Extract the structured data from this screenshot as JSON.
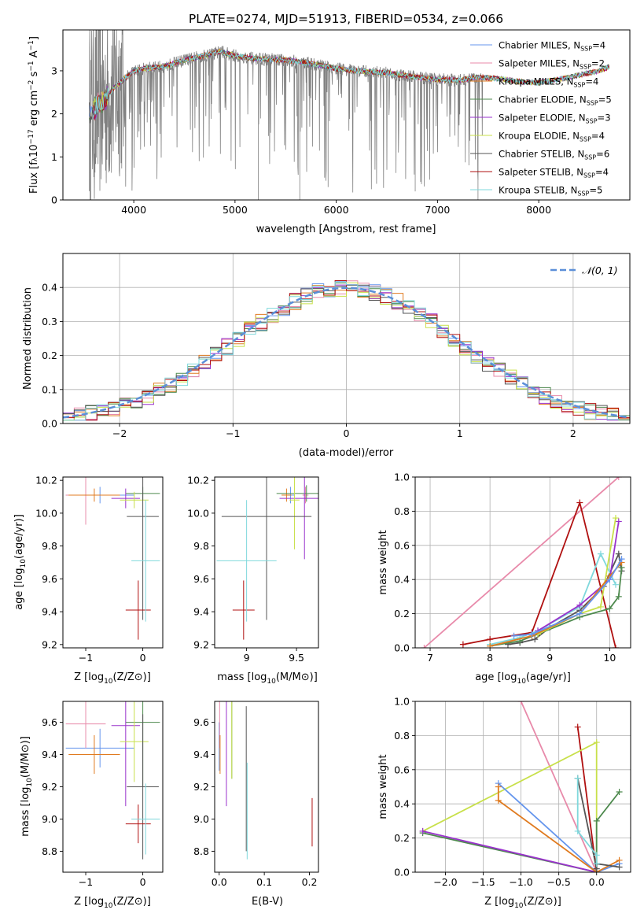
{
  "figure": {
    "title": "PLATE=0274, MJD=51913, FIBERID=0534, z=0.066"
  },
  "colors": {
    "chabrier_miles": "#6495ed",
    "salpeter_miles": "#e88aaa",
    "kroupa_miles": "#e07b20",
    "chabrier_elodie": "#4e8a4e",
    "salpeter_elodie": "#9932cc",
    "kroupa_elodie": "#c8e04a",
    "chabrier_stelib": "#555555",
    "salpeter_stelib": "#b01010",
    "kroupa_stelib": "#7fd8dc"
  },
  "chart_data": [
    {
      "id": "spectrum",
      "type": "line",
      "xlabel": "wavelength [Angstrom, rest frame]",
      "ylabel_parts": [
        "Flux [f",
        "λ",
        "10",
        "−17",
        " erg cm",
        "−2",
        " s",
        "−1",
        " A",
        "−1",
        "]"
      ],
      "xlim": [
        3300,
        8900
      ],
      "ylim": [
        0,
        3.95
      ],
      "xticks": [
        4000,
        5000,
        6000,
        7000,
        8000
      ],
      "yticks": [
        0,
        1,
        2,
        3
      ],
      "series": [
        {
          "name": "Chabrier MILES",
          "nssp": "4",
          "color": "#6495ed"
        },
        {
          "name": "Salpeter MILES",
          "nssp": "2",
          "color": "#e88aaa"
        },
        {
          "name": "Kroupa MILES",
          "nssp": "4",
          "color": "#e07b20"
        },
        {
          "name": "Chabrier ELODIE",
          "nssp": "5",
          "color": "#4e8a4e"
        },
        {
          "name": "Salpeter ELODIE",
          "nssp": "3",
          "color": "#9932cc"
        },
        {
          "name": "Kroupa ELODIE",
          "nssp": "4",
          "color": "#c8e04a"
        },
        {
          "name": "Chabrier STELIB",
          "nssp": "6",
          "color": "#555555"
        },
        {
          "name": "Salpeter STELIB",
          "nssp": "4",
          "color": "#b01010"
        },
        {
          "name": "Kroupa STELIB",
          "nssp": "5",
          "color": "#7fd8dc"
        }
      ],
      "data_color": "#808080",
      "continuum": [
        [
          3550,
          2.0
        ],
        [
          3700,
          2.3
        ],
        [
          3800,
          2.6
        ],
        [
          3900,
          2.8
        ],
        [
          4000,
          3.0
        ],
        [
          4100,
          3.05
        ],
        [
          4300,
          3.1
        ],
        [
          4500,
          3.25
        ],
        [
          4700,
          3.35
        ],
        [
          4850,
          3.45
        ],
        [
          5000,
          3.35
        ],
        [
          5200,
          3.28
        ],
        [
          5500,
          3.25
        ],
        [
          5800,
          3.15
        ],
        [
          6000,
          3.05
        ],
        [
          6200,
          3.0
        ],
        [
          6500,
          2.95
        ],
        [
          6800,
          2.85
        ],
        [
          7000,
          2.8
        ],
        [
          7200,
          2.78
        ],
        [
          7400,
          2.85
        ],
        [
          7600,
          2.82
        ],
        [
          7800,
          2.75
        ],
        [
          8000,
          2.72
        ],
        [
          8200,
          2.8
        ],
        [
          8400,
          2.9
        ],
        [
          8600,
          3.0
        ],
        [
          8700,
          3.1
        ]
      ]
    },
    {
      "id": "residuals",
      "type": "histogram",
      "xlabel": "(data-model)/error",
      "ylabel": "Normed distribution",
      "xlim": [
        -2.5,
        2.5
      ],
      "ylim": [
        0,
        0.5
      ],
      "xticks": [
        -2,
        -1,
        0,
        1,
        2
      ],
      "yticks": [
        0.0,
        0.1,
        0.2,
        0.3,
        0.4
      ],
      "legend": "N(0,1)",
      "legend_placement": "upper right",
      "gaussian_color": "#5b8fd8",
      "bin_width": 0.1
    },
    {
      "id": "age_vs_Z",
      "type": "scatter",
      "xlabel": "Z [log10(Z/Z⊙)]",
      "ylabel": "age [log10(age/yr)]",
      "xlim": [
        -1.4,
        0.35
      ],
      "ylim": [
        9.18,
        10.22
      ],
      "xticks": [
        -1,
        0
      ],
      "yticks": [
        9.2,
        9.4,
        9.6,
        9.8,
        10.0,
        10.2
      ],
      "points": [
        {
          "series": "Chabrier MILES",
          "x": -0.75,
          "y": 10.11,
          "xerr": 0.6,
          "yerr": 0.05
        },
        {
          "series": "Salpeter MILES",
          "x": -1.0,
          "y": 10.11,
          "xerr": 0.35,
          "yerr": 0.18
        },
        {
          "series": "Kroupa MILES",
          "x": -0.85,
          "y": 10.11,
          "xerr": 0.45,
          "yerr": 0.04
        },
        {
          "series": "Chabrier ELODIE",
          "x": 0.0,
          "y": 10.12,
          "xerr": 0.3,
          "yerr": 0.04
        },
        {
          "series": "Salpeter ELODIE",
          "x": -0.3,
          "y": 10.09,
          "xerr": 0.25,
          "yerr": 0.06
        },
        {
          "series": "Kroupa ELODIE",
          "x": -0.15,
          "y": 10.08,
          "xerr": 0.25,
          "yerr": 0.05
        },
        {
          "series": "Chabrier STELIB",
          "x": 0.0,
          "y": 9.98,
          "xerr": 0.28,
          "yerr": 0.63
        },
        {
          "series": "Salpeter STELIB",
          "x": -0.08,
          "y": 9.41,
          "xerr": 0.22,
          "yerr": 0.18
        },
        {
          "series": "Kroupa STELIB",
          "x": 0.05,
          "y": 9.71,
          "xerr": 0.25,
          "yerr": 0.37
        }
      ]
    },
    {
      "id": "age_vs_mass",
      "type": "scatter",
      "xlabel": "mass [log10(M/M⊙)]",
      "xlim": [
        8.68,
        9.72
      ],
      "ylim": [
        9.18,
        10.22
      ],
      "xticks": [
        9.0,
        9.5
      ],
      "yticks": [
        9.2,
        9.4,
        9.6,
        9.8,
        10.0,
        10.2
      ],
      "points": [
        {
          "series": "Chabrier MILES",
          "x": 9.44,
          "y": 10.11,
          "xerr": 0.04,
          "yerr": 0.05
        },
        {
          "series": "Salpeter MILES",
          "x": 9.59,
          "y": 10.11,
          "xerr": 0.03,
          "yerr": 0.05
        },
        {
          "series": "Kroupa MILES",
          "x": 9.4,
          "y": 10.11,
          "xerr": 0.05,
          "yerr": 0.04
        },
        {
          "series": "Chabrier ELODIE",
          "x": 9.6,
          "y": 10.12,
          "xerr": 0.3,
          "yerr": 0.05
        },
        {
          "series": "Salpeter ELODIE",
          "x": 9.58,
          "y": 10.09,
          "xerr": 0.25,
          "yerr": 0.37
        },
        {
          "series": "Kroupa ELODIE",
          "x": 9.48,
          "y": 10.08,
          "xerr": 0.05,
          "yerr": 0.3
        },
        {
          "series": "Chabrier STELIB",
          "x": 9.2,
          "y": 9.98,
          "xerr": 0.45,
          "yerr": 0.63
        },
        {
          "series": "Salpeter STELIB",
          "x": 8.97,
          "y": 9.41,
          "xerr": 0.11,
          "yerr": 0.18
        },
        {
          "series": "Kroupa STELIB",
          "x": 9.0,
          "y": 9.71,
          "xerr": 0.3,
          "yerr": 0.37
        }
      ]
    },
    {
      "id": "mass_weight_vs_age",
      "type": "line",
      "xlabel": "age [log10(age/yr)]",
      "ylabel": "mass weight",
      "xlim": [
        6.75,
        10.35
      ],
      "ylim": [
        0,
        1
      ],
      "xticks": [
        7,
        8,
        9,
        10
      ],
      "yticks": [
        0.0,
        0.2,
        0.4,
        0.6,
        0.8,
        1.0
      ],
      "series": [
        {
          "name": "Salpeter MILES",
          "x": [
            6.9,
            10.15
          ],
          "y": [
            0.0,
            1.0
          ]
        },
        {
          "name": "Salpeter STELIB",
          "x": [
            7.55,
            8.0,
            8.7,
            9.5,
            10.1
          ],
          "y": [
            0.02,
            0.05,
            0.09,
            0.85,
            0.0
          ]
        },
        {
          "name": "Chabrier STELIB",
          "x": [
            8.3,
            8.5,
            8.75,
            9.0,
            9.5,
            9.9,
            10.15,
            10.2
          ],
          "y": [
            0.02,
            0.03,
            0.05,
            0.12,
            0.22,
            0.36,
            0.55,
            0.45
          ]
        },
        {
          "name": "Kroupa STELIB",
          "x": [
            8.0,
            8.5,
            8.8,
            9.5,
            9.85,
            10.1
          ],
          "y": [
            0.02,
            0.06,
            0.1,
            0.24,
            0.55,
            0.37
          ]
        },
        {
          "name": "Chabrier ELODIE",
          "x": [
            8.0,
            8.5,
            8.8,
            9.5,
            10.0,
            10.15,
            10.2
          ],
          "y": [
            0.01,
            0.04,
            0.08,
            0.18,
            0.23,
            0.3,
            0.47
          ]
        },
        {
          "name": "Salpeter ELODIE",
          "x": [
            8.8,
            9.5,
            10.0,
            10.15
          ],
          "y": [
            0.1,
            0.25,
            0.4,
            0.74
          ]
        },
        {
          "name": "Kroupa ELODIE",
          "x": [
            8.8,
            9.5,
            9.85,
            10.1
          ],
          "y": [
            0.08,
            0.2,
            0.24,
            0.76
          ]
        },
        {
          "name": "Kroupa MILES",
          "x": [
            8.0,
            8.7,
            9.5,
            10.0,
            10.2
          ],
          "y": [
            0.01,
            0.07,
            0.2,
            0.42,
            0.5
          ]
        },
        {
          "name": "Chabrier MILES",
          "x": [
            8.4,
            8.7,
            9.5,
            10.0,
            10.2
          ],
          "y": [
            0.07,
            0.08,
            0.2,
            0.4,
            0.52
          ]
        }
      ]
    },
    {
      "id": "mass_vs_Z",
      "type": "scatter",
      "xlabel": "Z [log10(Z/Z⊙)]",
      "ylabel": "mass [log10(M/M⊙)]",
      "xlim": [
        -1.4,
        0.35
      ],
      "ylim": [
        8.67,
        9.73
      ],
      "xticks": [
        -1,
        0
      ],
      "yticks": [
        8.8,
        9.0,
        9.2,
        9.4,
        9.6
      ],
      "points": [
        {
          "series": "Chabrier MILES",
          "x": -0.75,
          "y": 9.44,
          "xerr": 0.6,
          "yerr": 0.12
        },
        {
          "series": "Salpeter MILES",
          "x": -1.0,
          "y": 9.59,
          "xerr": 0.35,
          "yerr": 0.15
        },
        {
          "series": "Kroupa MILES",
          "x": -0.85,
          "y": 9.4,
          "xerr": 0.45,
          "yerr": 0.12
        },
        {
          "series": "Chabrier ELODIE",
          "x": 0.0,
          "y": 9.6,
          "xerr": 0.3,
          "yerr": 0.4
        },
        {
          "series": "Salpeter ELODIE",
          "x": -0.3,
          "y": 9.58,
          "xerr": 0.25,
          "yerr": 0.5
        },
        {
          "series": "Kroupa ELODIE",
          "x": -0.15,
          "y": 9.48,
          "xerr": 0.25,
          "yerr": 0.25
        },
        {
          "series": "Chabrier STELIB",
          "x": 0.0,
          "y": 9.2,
          "xerr": 0.28,
          "yerr": 0.45
        },
        {
          "series": "Salpeter STELIB",
          "x": -0.08,
          "y": 8.97,
          "xerr": 0.22,
          "yerr": 0.12
        },
        {
          "series": "Kroupa STELIB",
          "x": 0.05,
          "y": 9.0,
          "xerr": 0.25,
          "yerr": 0.22
        }
      ]
    },
    {
      "id": "mass_vs_ebv",
      "type": "scatter",
      "xlabel": "E(B-V)",
      "xlim": [
        -0.01,
        0.22
      ],
      "ylim": [
        8.67,
        9.73
      ],
      "xticks": [
        0.0,
        0.1,
        0.2
      ],
      "xtick_labels": [
        "0.0",
        "0.1",
        "0.2"
      ],
      "yticks": [
        8.8,
        9.0,
        9.2,
        9.4,
        9.6
      ],
      "points": [
        {
          "series": "Chabrier MILES",
          "x": 0.0,
          "y": 9.45,
          "yerr": 0.15
        },
        {
          "series": "Salpeter MILES",
          "x": 0.001,
          "y": 9.59,
          "yerr": 0.15
        },
        {
          "series": "Kroupa MILES",
          "x": 0.002,
          "y": 9.4,
          "yerr": 0.12
        },
        {
          "series": "Chabrier ELODIE",
          "x": 0.028,
          "y": 9.6,
          "yerr": 0.35
        },
        {
          "series": "Salpeter ELODIE",
          "x": 0.016,
          "y": 9.58,
          "yerr": 0.5
        },
        {
          "series": "Kroupa ELODIE",
          "x": 0.028,
          "y": 9.5,
          "yerr": 0.25
        },
        {
          "series": "Chabrier STELIB",
          "x": 0.06,
          "y": 9.25,
          "yerr": 0.45
        },
        {
          "series": "Salpeter STELIB",
          "x": 0.206,
          "y": 8.98,
          "yerr": 0.15
        },
        {
          "series": "Kroupa STELIB",
          "x": 0.062,
          "y": 9.05,
          "yerr": 0.3
        }
      ]
    },
    {
      "id": "mass_weight_vs_Z",
      "type": "line",
      "xlabel": "Z [log10(Z/Z⊙)]",
      "ylabel": "mass weight",
      "xlim": [
        -2.4,
        0.45
      ],
      "ylim": [
        0,
        1
      ],
      "xticks": [
        -2.0,
        -1.5,
        -1.0,
        -0.5,
        0.0
      ],
      "xtick_labels": [
        "−2.0",
        "−1.5",
        "−1.0",
        "−0.5",
        "0.0"
      ],
      "yticks": [
        0.0,
        0.2,
        0.4,
        0.6,
        0.8,
        1.0
      ],
      "series": [
        {
          "name": "Salpeter MILES",
          "x": [
            -1.0,
            0.0
          ],
          "y": [
            1.0,
            0.0
          ]
        },
        {
          "name": "Salpeter STELIB",
          "x": [
            -0.25,
            0.0
          ],
          "y": [
            0.85,
            0.0
          ]
        },
        {
          "name": "Kroupa ELODIE",
          "x": [
            -2.3,
            0.0,
            0.0
          ],
          "y": [
            0.24,
            0.76,
            0.0
          ]
        },
        {
          "name": "Chabrier ELODIE",
          "x": [
            -2.3,
            0.0,
            0.0,
            0.3
          ],
          "y": [
            0.23,
            0.0,
            0.3,
            0.47
          ]
        },
        {
          "name": "Salpeter ELODIE",
          "x": [
            -2.3,
            0.0
          ],
          "y": [
            0.24,
            0.0
          ]
        },
        {
          "name": "Chabrier MILES",
          "x": [
            -1.3,
            0.0,
            0.3
          ],
          "y": [
            0.52,
            0.0,
            0.05
          ]
        },
        {
          "name": "Kroupa MILES",
          "x": [
            -1.3,
            -1.3,
            0.0,
            0.3
          ],
          "y": [
            0.5,
            0.42,
            0.0,
            0.07
          ]
        },
        {
          "name": "Chabrier STELIB",
          "x": [
            -0.25,
            0.0,
            0.0,
            0.3
          ],
          "y": [
            0.55,
            0.02,
            0.05,
            0.03
          ]
        },
        {
          "name": "Kroupa STELIB",
          "x": [
            -0.25,
            -0.25,
            0.0,
            0.0
          ],
          "y": [
            0.55,
            0.24,
            0.1,
            0.05
          ]
        }
      ]
    }
  ]
}
